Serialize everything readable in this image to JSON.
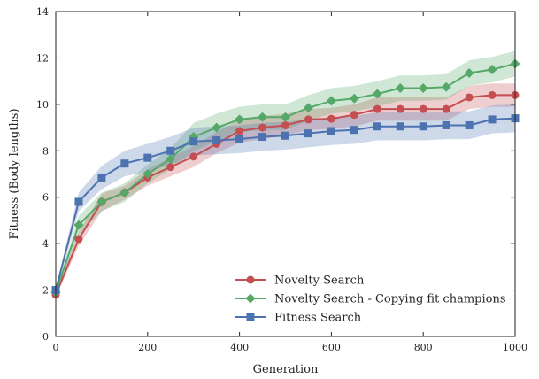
{
  "chart_data": {
    "type": "line",
    "xlabel": "Generation",
    "ylabel": "Fitness (Body lengths)",
    "xlim": [
      0,
      1000
    ],
    "ylim": [
      0,
      14
    ],
    "xticks": [
      0,
      200,
      400,
      600,
      800,
      1000
    ],
    "yticks": [
      0,
      2,
      4,
      6,
      8,
      10,
      12,
      14
    ],
    "grid": false,
    "legend_position": "bottom-right",
    "x": [
      0,
      50,
      100,
      150,
      200,
      250,
      300,
      350,
      400,
      450,
      500,
      550,
      600,
      650,
      700,
      750,
      800,
      850,
      900,
      950,
      1000
    ],
    "series": [
      {
        "name": "Novelty Search",
        "color": "#c44e52",
        "marker": "circle",
        "values": [
          1.8,
          4.2,
          5.8,
          6.2,
          6.85,
          7.3,
          7.75,
          8.3,
          8.85,
          9.0,
          9.1,
          9.35,
          9.38,
          9.55,
          9.8,
          9.8,
          9.8,
          9.8,
          10.3,
          10.4,
          10.4
        ],
        "band_lower": [
          1.7,
          3.9,
          5.4,
          5.9,
          6.5,
          6.9,
          7.3,
          7.9,
          8.35,
          8.5,
          8.65,
          8.9,
          8.95,
          9.05,
          9.3,
          9.3,
          9.3,
          9.3,
          9.8,
          9.9,
          9.9
        ],
        "band_upper": [
          1.95,
          4.5,
          6.15,
          6.5,
          7.2,
          7.7,
          8.2,
          8.8,
          9.35,
          9.5,
          9.6,
          9.8,
          9.85,
          10.0,
          10.3,
          10.3,
          10.3,
          10.3,
          10.8,
          10.9,
          10.9
        ]
      },
      {
        "name": "Novelty Search - Copying fit champions",
        "color": "#55a868",
        "marker": "diamond",
        "values": [
          1.9,
          4.8,
          5.8,
          6.2,
          7.0,
          7.65,
          8.6,
          9.0,
          9.35,
          9.45,
          9.45,
          9.85,
          10.15,
          10.25,
          10.45,
          10.7,
          10.7,
          10.75,
          11.35,
          11.5,
          11.75
        ],
        "band_lower": [
          1.8,
          4.4,
          5.4,
          5.8,
          6.6,
          7.2,
          8.0,
          8.4,
          8.8,
          8.9,
          8.9,
          9.3,
          9.6,
          9.7,
          9.9,
          10.15,
          10.15,
          10.2,
          10.8,
          10.95,
          11.2
        ],
        "band_upper": [
          2.0,
          5.2,
          6.2,
          6.6,
          7.4,
          8.1,
          9.2,
          9.6,
          9.9,
          10.0,
          10.0,
          10.4,
          10.7,
          10.8,
          11.0,
          11.25,
          11.25,
          11.3,
          11.9,
          12.05,
          12.3
        ]
      },
      {
        "name": "Fitness Search",
        "color": "#4c72b0",
        "marker": "square",
        "values": [
          2.0,
          5.8,
          6.85,
          7.45,
          7.7,
          8.0,
          8.4,
          8.45,
          8.5,
          8.6,
          8.65,
          8.75,
          8.85,
          8.9,
          9.05,
          9.05,
          9.05,
          9.1,
          9.1,
          9.35,
          9.4
        ],
        "band_lower": [
          1.9,
          5.4,
          6.35,
          6.9,
          7.1,
          7.4,
          7.8,
          7.85,
          7.9,
          8.0,
          8.05,
          8.15,
          8.25,
          8.3,
          8.45,
          8.45,
          8.45,
          8.5,
          8.5,
          8.75,
          8.8
        ],
        "band_upper": [
          2.1,
          6.2,
          7.35,
          8.0,
          8.3,
          8.6,
          9.0,
          9.05,
          9.1,
          9.2,
          9.25,
          9.35,
          9.45,
          9.5,
          9.65,
          9.65,
          9.65,
          9.7,
          9.7,
          9.95,
          10.0
        ]
      }
    ]
  }
}
